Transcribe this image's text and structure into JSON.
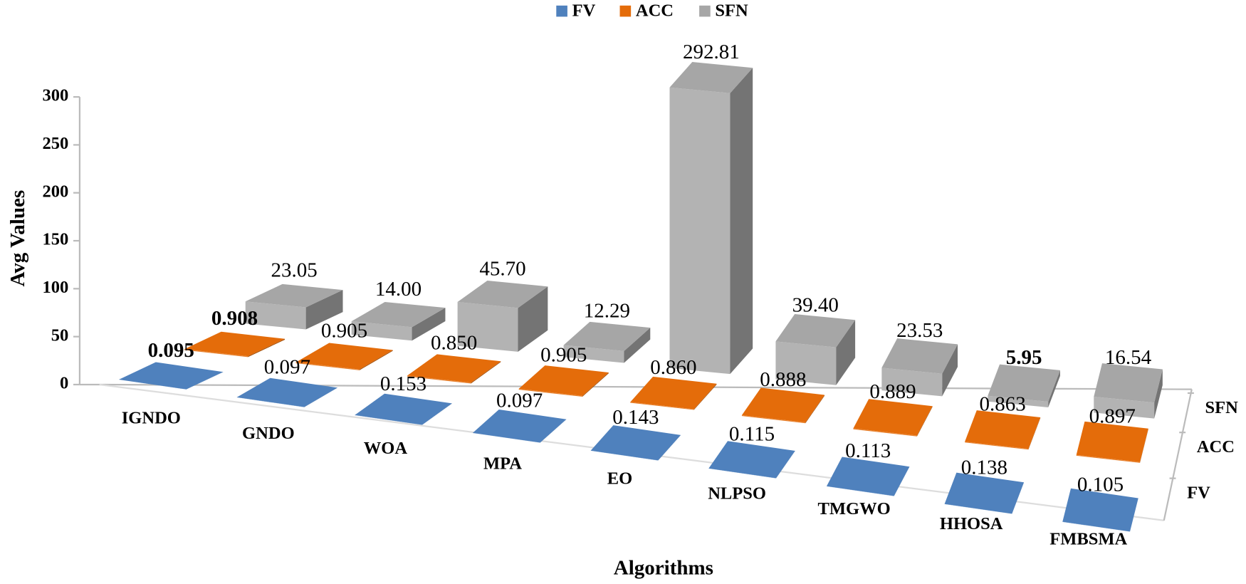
{
  "chart_data": {
    "type": "bar3d",
    "x_label": "Algorithms",
    "y_label": "Avg Values",
    "categories": [
      "IGNDO",
      "GNDO",
      "WOA",
      "MPA",
      "EO",
      "NLPSO",
      "TMGWO",
      "HHOSA",
      "FMBSMA"
    ],
    "series": [
      {
        "name": "FV",
        "color": "#4f81bd",
        "values": [
          0.095,
          0.097,
          0.153,
          0.097,
          0.143,
          0.115,
          0.113,
          0.138,
          0.105
        ],
        "bold_index": 0
      },
      {
        "name": "ACC",
        "color": "#e46c0a",
        "values": [
          0.908,
          0.905,
          0.85,
          0.905,
          0.86,
          0.888,
          0.889,
          0.863,
          0.897
        ],
        "value_labels": [
          "0.908",
          "0.905",
          "0.850",
          "0.905",
          "0.860",
          "0.888",
          "0.889",
          "0.863",
          "0.897"
        ],
        "bold_index": 0
      },
      {
        "name": "SFN",
        "color": "#a6a6a6",
        "values": [
          23.05,
          14,
          45.7,
          12.29,
          292.81,
          39.4,
          23.53,
          5.95,
          16.54
        ],
        "value_labels": [
          "23.05",
          "14.00",
          "45.70",
          "12.29",
          "292.81",
          "39.40",
          "23.53",
          "5.95",
          "16.54"
        ],
        "bold_index": 7
      }
    ],
    "ylim": [
      0,
      300
    ],
    "yticks": [
      0,
      50,
      100,
      150,
      200,
      250,
      300
    ],
    "grid": false,
    "legend": "top"
  }
}
